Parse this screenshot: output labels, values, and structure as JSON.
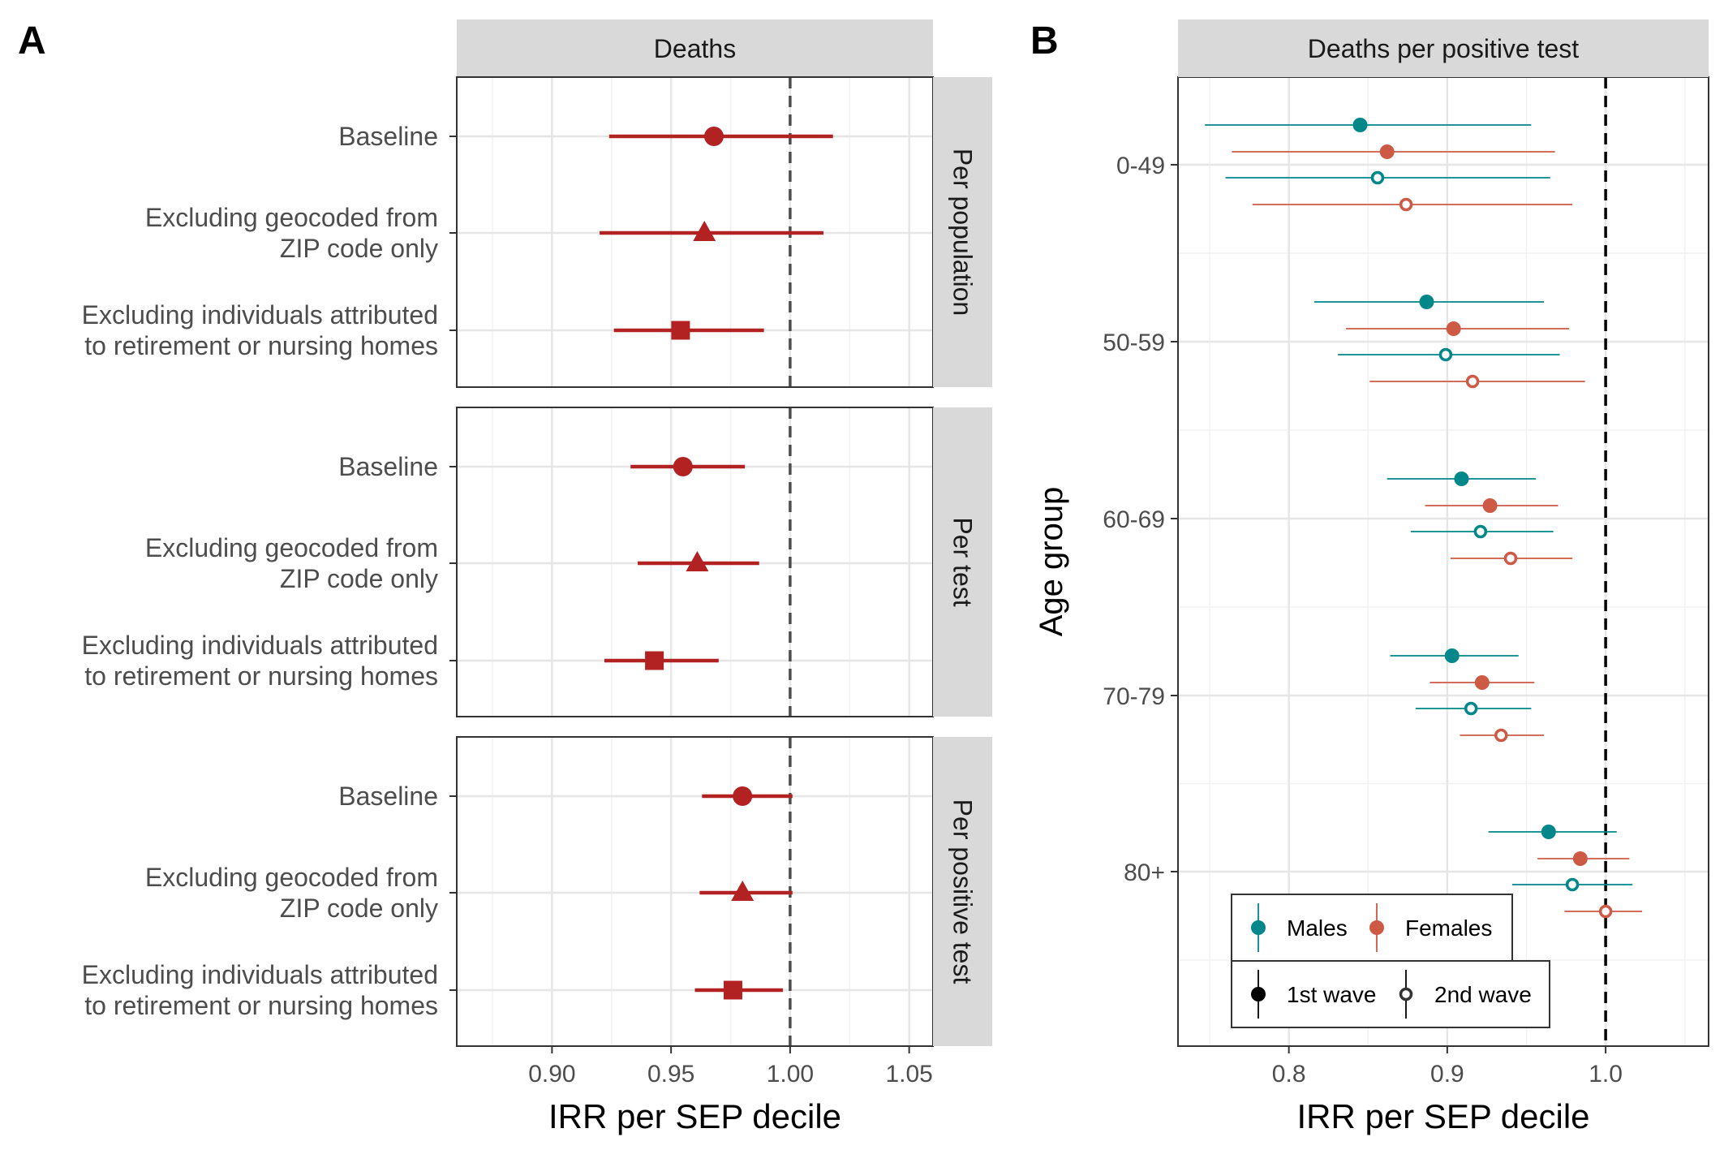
{
  "chart_data": [
    {
      "panel_label": "A",
      "type": "forest",
      "strip_top": "Deaths",
      "xlabel": "IRR per SEP decile",
      "xlim": [
        0.86,
        1.06
      ],
      "xticks": [
        0.9,
        0.95,
        1.0,
        1.05
      ],
      "xtick_labels": [
        "0.90",
        "0.95",
        "1.00",
        "1.05"
      ],
      "reference_line": 1.0,
      "color": "#b22222",
      "categories": [
        [
          "Baseline"
        ],
        [
          "Excluding geocoded from",
          "ZIP code only"
        ],
        [
          "Excluding individuals attributed",
          "to retirement or nursing homes"
        ]
      ],
      "panels": [
        {
          "facet": "Per population",
          "estimates": [
            {
              "shape": "circle",
              "value": 0.968,
              "lo": 0.924,
              "hi": 1.018
            },
            {
              "shape": "triangle",
              "value": 0.964,
              "lo": 0.92,
              "hi": 1.014
            },
            {
              "shape": "square",
              "value": 0.954,
              "lo": 0.926,
              "hi": 0.989
            }
          ]
        },
        {
          "facet": "Per test",
          "estimates": [
            {
              "shape": "circle",
              "value": 0.955,
              "lo": 0.933,
              "hi": 0.981
            },
            {
              "shape": "triangle",
              "value": 0.961,
              "lo": 0.936,
              "hi": 0.987
            },
            {
              "shape": "square",
              "value": 0.943,
              "lo": 0.922,
              "hi": 0.97
            }
          ]
        },
        {
          "facet": "Per positive test",
          "estimates": [
            {
              "shape": "circle",
              "value": 0.98,
              "lo": 0.963,
              "hi": 1.001
            },
            {
              "shape": "triangle",
              "value": 0.98,
              "lo": 0.962,
              "hi": 1.001
            },
            {
              "shape": "square",
              "value": 0.976,
              "lo": 0.96,
              "hi": 0.997
            }
          ]
        }
      ]
    },
    {
      "panel_label": "B",
      "type": "forest",
      "strip_top": "Deaths per positive test",
      "xlabel": "IRR per SEP decile",
      "ylabel": "Age group",
      "xlim": [
        0.73,
        1.065
      ],
      "xticks": [
        0.8,
        0.9,
        1.0
      ],
      "xtick_labels": [
        "0.8",
        "0.9",
        "1.0"
      ],
      "reference_line": 1.0,
      "colors": {
        "Males": "#00878a",
        "Females": "#cd5a44"
      },
      "groups": [
        {
          "age": "0-49",
          "estimates": [
            {
              "sex": "Males",
              "wave": "1st wave",
              "value": 0.845,
              "lo": 0.747,
              "hi": 0.953
            },
            {
              "sex": "Females",
              "wave": "1st wave",
              "value": 0.862,
              "lo": 0.764,
              "hi": 0.968
            },
            {
              "sex": "Males",
              "wave": "2nd wave",
              "value": 0.856,
              "lo": 0.76,
              "hi": 0.965
            },
            {
              "sex": "Females",
              "wave": "2nd wave",
              "value": 0.874,
              "lo": 0.777,
              "hi": 0.979
            }
          ]
        },
        {
          "age": "50-59",
          "estimates": [
            {
              "sex": "Males",
              "wave": "1st wave",
              "value": 0.887,
              "lo": 0.816,
              "hi": 0.961
            },
            {
              "sex": "Females",
              "wave": "1st wave",
              "value": 0.904,
              "lo": 0.836,
              "hi": 0.977
            },
            {
              "sex": "Males",
              "wave": "2nd wave",
              "value": 0.899,
              "lo": 0.831,
              "hi": 0.971
            },
            {
              "sex": "Females",
              "wave": "2nd wave",
              "value": 0.916,
              "lo": 0.851,
              "hi": 0.987
            }
          ]
        },
        {
          "age": "60-69",
          "estimates": [
            {
              "sex": "Males",
              "wave": "1st wave",
              "value": 0.909,
              "lo": 0.862,
              "hi": 0.956
            },
            {
              "sex": "Females",
              "wave": "1st wave",
              "value": 0.927,
              "lo": 0.886,
              "hi": 0.97
            },
            {
              "sex": "Males",
              "wave": "2nd wave",
              "value": 0.921,
              "lo": 0.877,
              "hi": 0.967
            },
            {
              "sex": "Females",
              "wave": "2nd wave",
              "value": 0.94,
              "lo": 0.902,
              "hi": 0.979
            }
          ]
        },
        {
          "age": "70-79",
          "estimates": [
            {
              "sex": "Males",
              "wave": "1st wave",
              "value": 0.903,
              "lo": 0.864,
              "hi": 0.945
            },
            {
              "sex": "Females",
              "wave": "1st wave",
              "value": 0.922,
              "lo": 0.889,
              "hi": 0.955
            },
            {
              "sex": "Males",
              "wave": "2nd wave",
              "value": 0.915,
              "lo": 0.88,
              "hi": 0.953
            },
            {
              "sex": "Females",
              "wave": "2nd wave",
              "value": 0.934,
              "lo": 0.908,
              "hi": 0.961
            }
          ]
        },
        {
          "age": "80+",
          "estimates": [
            {
              "sex": "Males",
              "wave": "1st wave",
              "value": 0.964,
              "lo": 0.926,
              "hi": 1.007
            },
            {
              "sex": "Females",
              "wave": "1st wave",
              "value": 0.984,
              "lo": 0.957,
              "hi": 1.015
            },
            {
              "sex": "Males",
              "wave": "2nd wave",
              "value": 0.979,
              "lo": 0.941,
              "hi": 1.017
            },
            {
              "sex": "Females",
              "wave": "2nd wave",
              "value": 1.0,
              "lo": 0.974,
              "hi": 1.023
            }
          ]
        }
      ],
      "legend": {
        "position": "bottom-left",
        "sex": [
          "Males",
          "Females"
        ],
        "wave": [
          "1st wave",
          "2nd wave"
        ]
      }
    }
  ]
}
